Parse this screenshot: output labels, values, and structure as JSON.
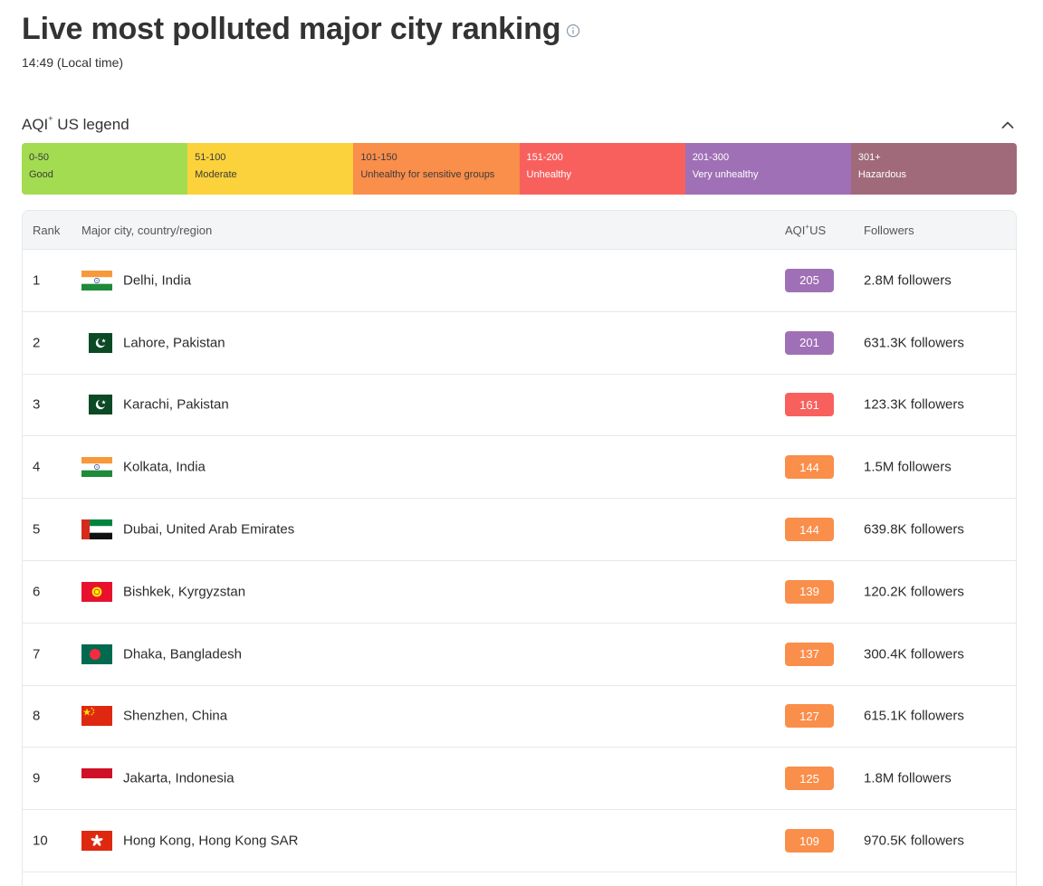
{
  "header": {
    "title": "Live most polluted major city ranking",
    "local_time": "14:49 (Local time)"
  },
  "legend": {
    "title": "AQI",
    "title_sup": "+",
    "title_suffix": " US legend",
    "segments": [
      {
        "range": "0-50",
        "label": "Good",
        "color": "#a3dc50",
        "text_color": "#3b3b3b"
      },
      {
        "range": "51-100",
        "label": "Moderate",
        "color": "#fbd23b",
        "text_color": "#3b3b3b"
      },
      {
        "range": "101-150",
        "label": "Unhealthy for sensitive groups",
        "color": "#fa8e4b",
        "text_color": "#3b3b3b"
      },
      {
        "range": "151-200",
        "label": "Unhealthy",
        "color": "#f8605e",
        "text_color": "#ffffff"
      },
      {
        "range": "201-300",
        "label": "Very unhealthy",
        "color": "#a070b6",
        "text_color": "#ffffff"
      },
      {
        "range": "301+",
        "label": "Hazardous",
        "color": "#a06a7b",
        "text_color": "#ffffff"
      }
    ]
  },
  "table": {
    "headers": {
      "rank": "Rank",
      "city": "Major city, country/region",
      "aqi": "AQI",
      "aqi_sup": "+",
      "aqi_suffix": " US",
      "followers": "Followers"
    },
    "rows": [
      {
        "rank": "1",
        "flag": "india-flag",
        "city": "Delhi, India",
        "aqi": "205",
        "color": "#a070b6",
        "followers": "2.8M followers"
      },
      {
        "rank": "2",
        "flag": "pakistan-flag",
        "city": "Lahore, Pakistan",
        "aqi": "201",
        "color": "#a070b6",
        "followers": "631.3K followers"
      },
      {
        "rank": "3",
        "flag": "pakistan-flag",
        "city": "Karachi, Pakistan",
        "aqi": "161",
        "color": "#f8605e",
        "followers": "123.3K followers"
      },
      {
        "rank": "4",
        "flag": "india-flag",
        "city": "Kolkata, India",
        "aqi": "144",
        "color": "#fa8e4b",
        "followers": "1.5M followers"
      },
      {
        "rank": "5",
        "flag": "uae-flag",
        "city": "Dubai, United Arab Emirates",
        "aqi": "144",
        "color": "#fa8e4b",
        "followers": "639.8K followers"
      },
      {
        "rank": "6",
        "flag": "kyrgyzstan-flag",
        "city": "Bishkek, Kyrgyzstan",
        "aqi": "139",
        "color": "#fa8e4b",
        "followers": "120.2K followers"
      },
      {
        "rank": "7",
        "flag": "bangladesh-flag",
        "city": "Dhaka, Bangladesh",
        "aqi": "137",
        "color": "#fa8e4b",
        "followers": "300.4K followers"
      },
      {
        "rank": "8",
        "flag": "china-flag",
        "city": "Shenzhen, China",
        "aqi": "127",
        "color": "#fa8e4b",
        "followers": "615.1K followers"
      },
      {
        "rank": "9",
        "flag": "indonesia-flag",
        "city": "Jakarta, Indonesia",
        "aqi": "125",
        "color": "#fa8e4b",
        "followers": "1.8M followers"
      },
      {
        "rank": "10",
        "flag": "hongkong-flag",
        "city": "Hong Kong, Hong Kong SAR",
        "aqi": "109",
        "color": "#fa8e4b",
        "followers": "970.5K followers"
      }
    ]
  }
}
